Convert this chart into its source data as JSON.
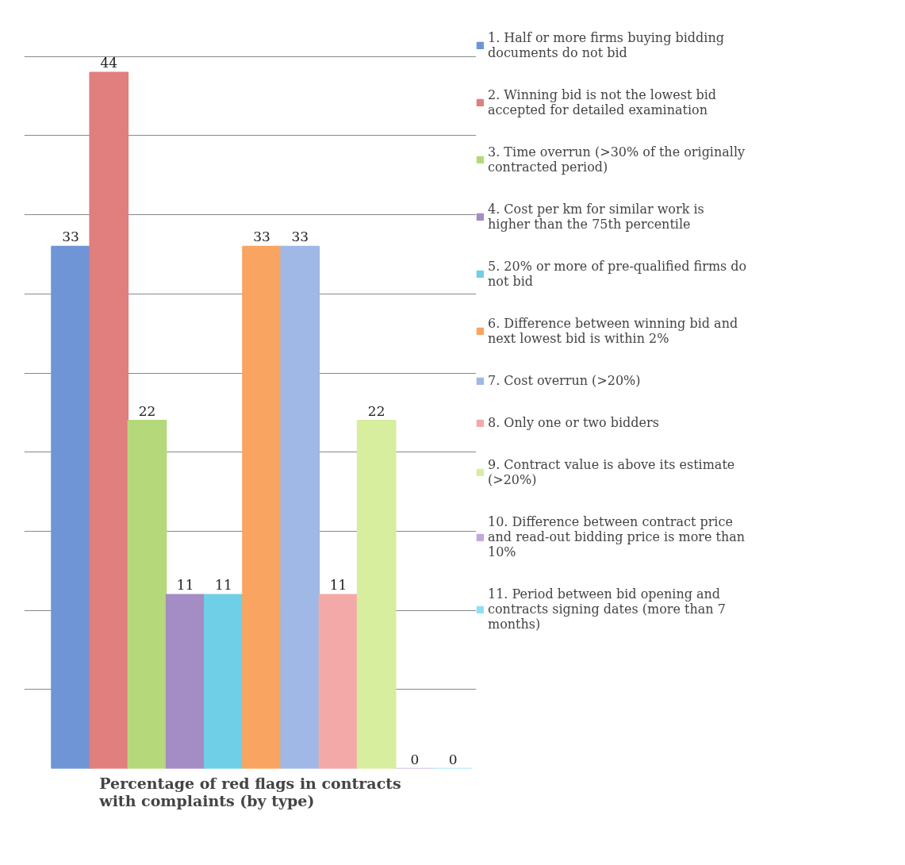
{
  "chart_data": {
    "type": "bar",
    "title": "Percentage of red flags in contracts\nwith complaints  (by type)",
    "categories": [
      null
    ],
    "series": [
      {
        "name": "1. Half or more firms buying bidding documents do not bid",
        "color": "#6f95d6",
        "values": [
          33
        ]
      },
      {
        "name": "2. Winning bid is not the lowest bid accepted for detailed examination",
        "color": "#e07f7e",
        "values": [
          44
        ]
      },
      {
        "name": "3. Time overrun (>30% of the originally contracted period)",
        "color": "#b5d97a",
        "values": [
          22
        ]
      },
      {
        "name": "4. Cost per km for similar work is higher than the 75th percentile",
        "color": "#a48cc4",
        "values": [
          11
        ]
      },
      {
        "name": "5. 20% or more of pre-qualified firms do not bid",
        "color": "#6fcfe6",
        "values": [
          11
        ]
      },
      {
        "name": "6. Difference between winning bid and next lowest bid is within 2%",
        "color": "#f9a460",
        "values": [
          33
        ]
      },
      {
        "name": "7. Cost overrun (>20%)",
        "color": "#9fb8e6",
        "values": [
          33
        ]
      },
      {
        "name": "8. Only one or two bidders",
        "color": "#f4a9a9",
        "values": [
          11
        ]
      },
      {
        "name": "9. Contract value is above its estimate (>20%)",
        "color": "#d6ee9e",
        "values": [
          22
        ]
      },
      {
        "name": "10. Difference between contract price and read-out bidding price is more than 10%",
        "color": "#c2a8dc",
        "values": [
          0
        ]
      },
      {
        "name": "11. Period between bid opening and contracts signing dates (more than 7 months)",
        "color": "#8fe0f4",
        "values": [
          0
        ]
      }
    ],
    "tick_labels": false,
    "grid": "y",
    "legend": "right",
    "data_labels": true
  }
}
